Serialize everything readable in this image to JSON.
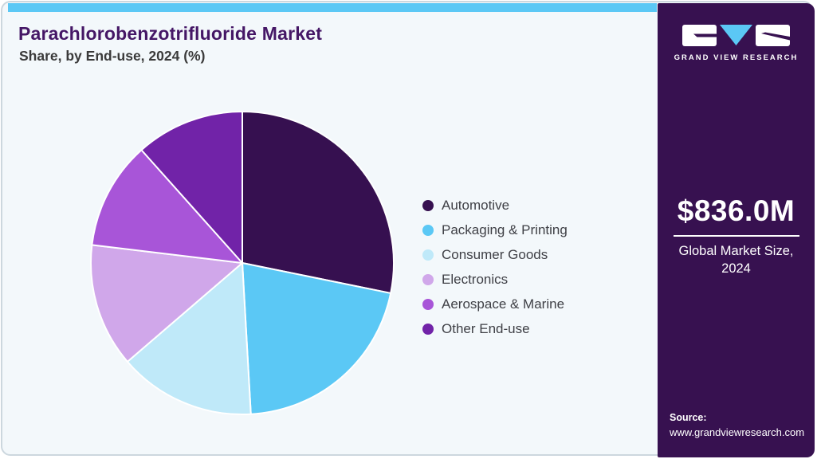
{
  "page": {
    "title": "Parachlorobenzotrifluoride Market",
    "subtitle": "Share, by End-use, 2024 (%)"
  },
  "sidebar": {
    "logo_text": "GRAND VIEW RESEARCH",
    "market_size_value": "$836.0M",
    "market_size_label_line1": "Global Market Size,",
    "market_size_label_line2": "2024",
    "source_label": "Source:",
    "source_url": "www.grandviewresearch.com",
    "background_color": "#371150",
    "accent_color": "#5bc8f5"
  },
  "chart_data": {
    "type": "pie",
    "title": "Parachlorobenzotrifluoride Market Share, by End-use, 2024 (%)",
    "unit": "%",
    "direction": "clockwise",
    "start_angle_deg": 0,
    "legend_position": "right",
    "categories": [
      "Automotive",
      "Packaging & Printing",
      "Consumer Goods",
      "Electronics",
      "Aerospace & Marine",
      "Other End-use"
    ],
    "values": [
      28.2,
      20.9,
      14.6,
      13.2,
      11.5,
      11.6
    ],
    "colors": [
      "#361050",
      "#5bc8f5",
      "#bfe9f9",
      "#d0a7ea",
      "#a855d8",
      "#7123a8"
    ]
  }
}
